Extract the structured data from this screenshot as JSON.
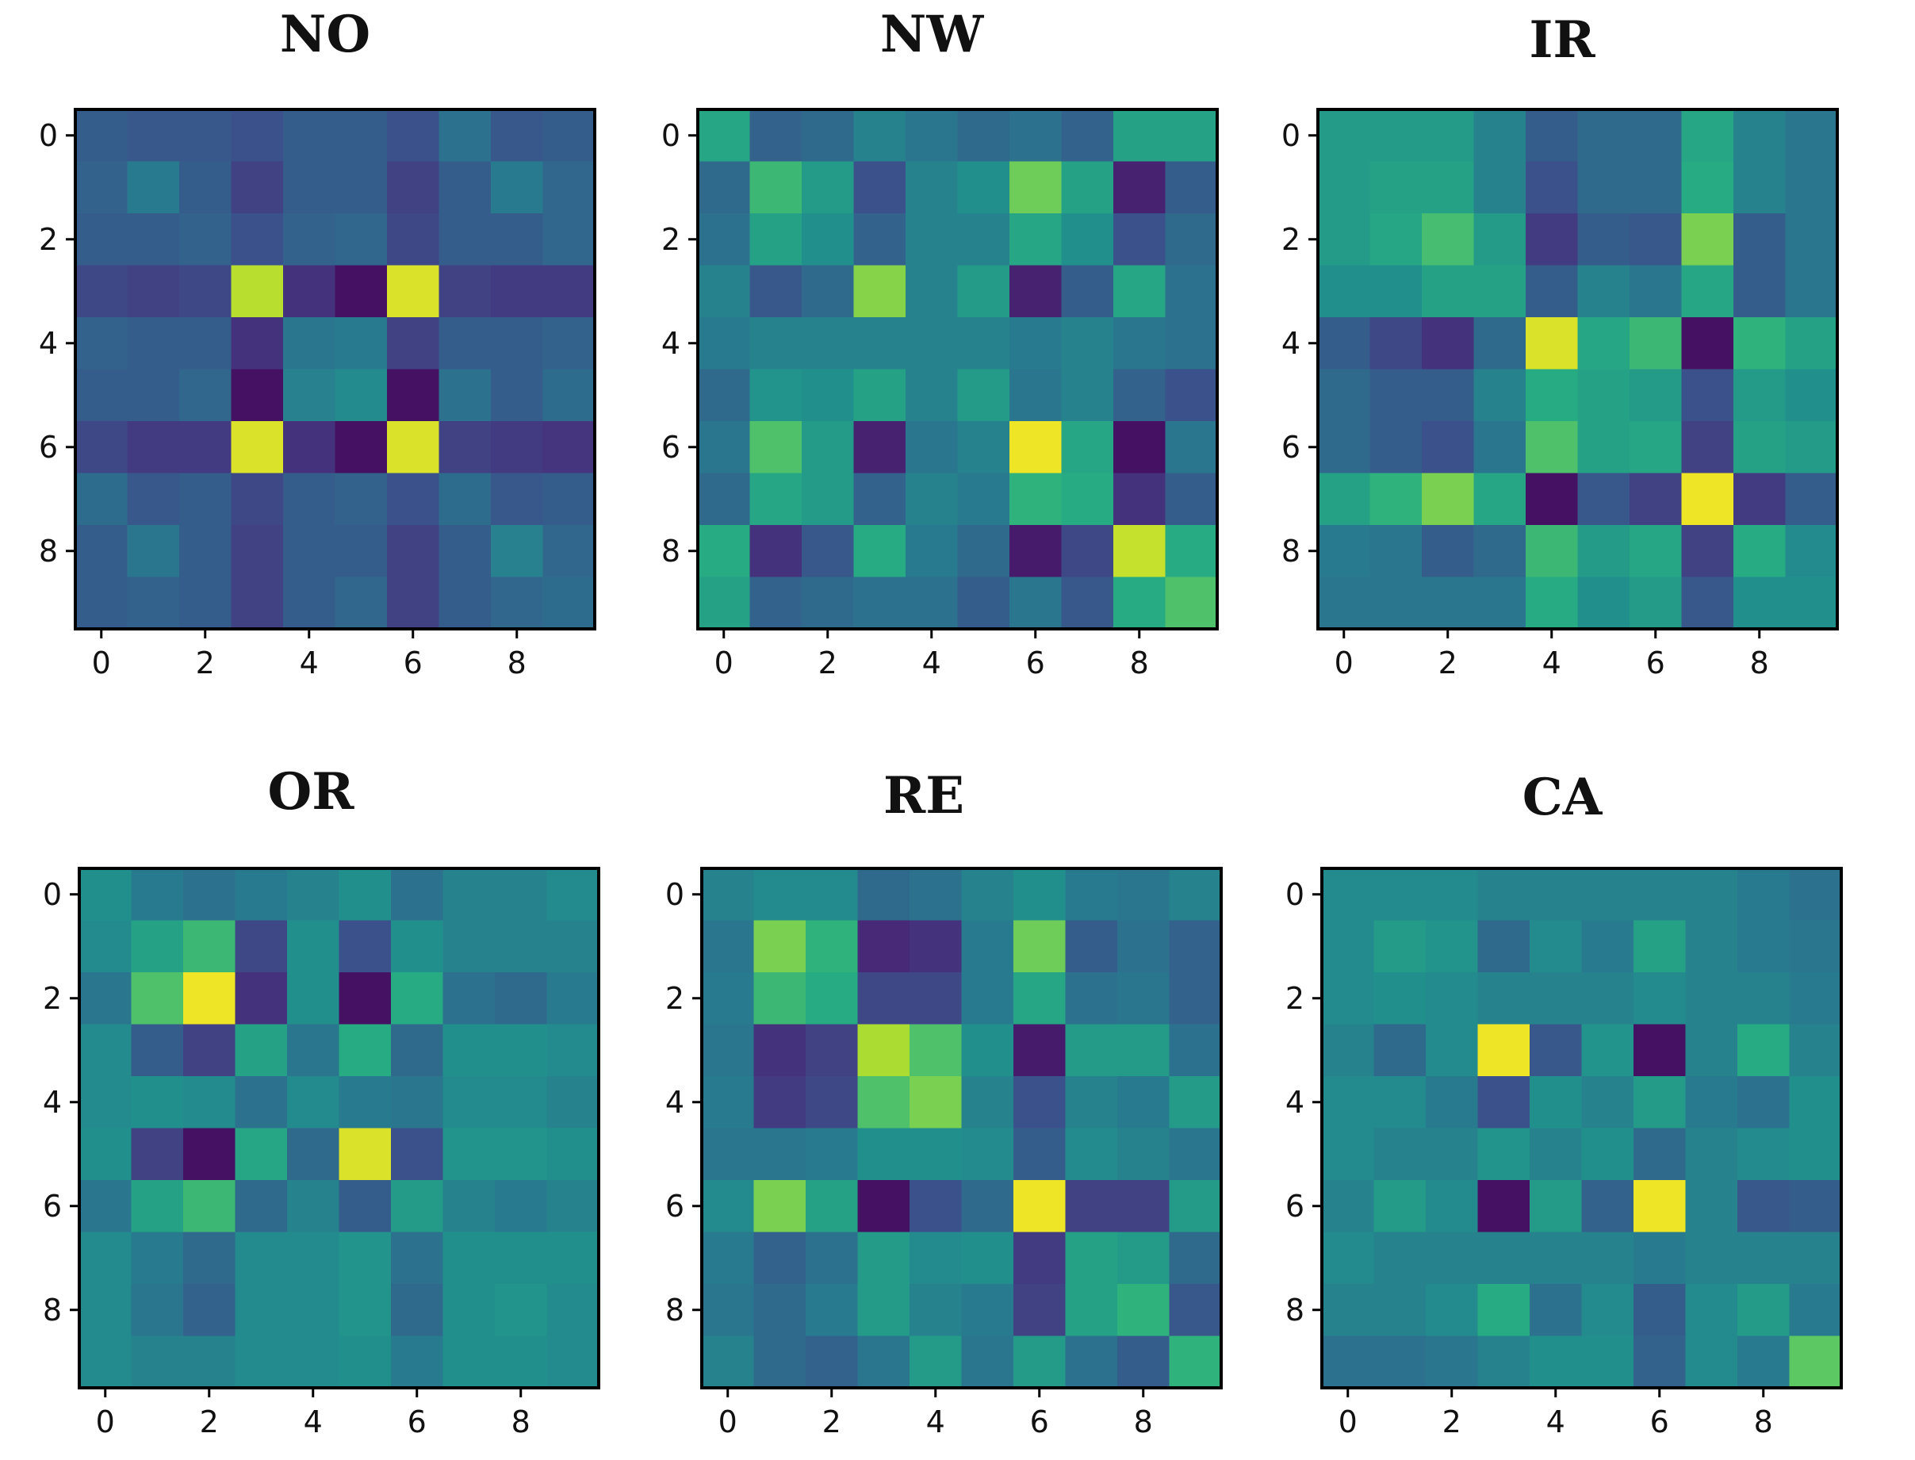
{
  "figure": {
    "layout": "2x3 grid of heatmaps",
    "colormap": "viridis"
  },
  "chart_data": [
    {
      "type": "heatmap",
      "title": "NO",
      "x_ticks": [
        "0",
        "2",
        "4",
        "6",
        "8"
      ],
      "y_ticks": [
        "0",
        "2",
        "4",
        "6",
        "8"
      ],
      "range": [
        0,
        1
      ],
      "values": [
        [
          0.3,
          0.28,
          0.28,
          0.25,
          0.3,
          0.3,
          0.25,
          0.38,
          0.28,
          0.3
        ],
        [
          0.32,
          0.42,
          0.3,
          0.2,
          0.3,
          0.3,
          0.2,
          0.3,
          0.42,
          0.34
        ],
        [
          0.3,
          0.3,
          0.32,
          0.25,
          0.32,
          0.34,
          0.22,
          0.3,
          0.3,
          0.34
        ],
        [
          0.22,
          0.2,
          0.22,
          0.9,
          0.15,
          0.05,
          0.95,
          0.2,
          0.18,
          0.18
        ],
        [
          0.32,
          0.3,
          0.3,
          0.15,
          0.4,
          0.42,
          0.2,
          0.3,
          0.3,
          0.32
        ],
        [
          0.3,
          0.3,
          0.34,
          0.05,
          0.44,
          0.48,
          0.05,
          0.38,
          0.3,
          0.36
        ],
        [
          0.22,
          0.18,
          0.18,
          0.95,
          0.15,
          0.05,
          0.95,
          0.2,
          0.18,
          0.16
        ],
        [
          0.36,
          0.28,
          0.3,
          0.22,
          0.3,
          0.32,
          0.25,
          0.36,
          0.28,
          0.3
        ],
        [
          0.3,
          0.4,
          0.3,
          0.2,
          0.3,
          0.3,
          0.2,
          0.3,
          0.44,
          0.34
        ],
        [
          0.3,
          0.32,
          0.3,
          0.2,
          0.3,
          0.34,
          0.2,
          0.3,
          0.34,
          0.36
        ]
      ]
    },
    {
      "type": "heatmap",
      "title": "NW",
      "x_ticks": [
        "0",
        "2",
        "4",
        "6",
        "8"
      ],
      "y_ticks": [
        "0",
        "2",
        "4",
        "6",
        "8"
      ],
      "range": [
        0,
        1
      ],
      "values": [
        [
          0.6,
          0.32,
          0.35,
          0.45,
          0.4,
          0.35,
          0.38,
          0.32,
          0.58,
          0.58
        ],
        [
          0.35,
          0.68,
          0.55,
          0.25,
          0.45,
          0.5,
          0.78,
          0.58,
          0.1,
          0.3
        ],
        [
          0.38,
          0.58,
          0.5,
          0.32,
          0.45,
          0.45,
          0.6,
          0.5,
          0.25,
          0.35
        ],
        [
          0.45,
          0.28,
          0.35,
          0.82,
          0.45,
          0.55,
          0.1,
          0.3,
          0.6,
          0.38
        ],
        [
          0.42,
          0.45,
          0.45,
          0.45,
          0.45,
          0.45,
          0.42,
          0.45,
          0.4,
          0.38
        ],
        [
          0.35,
          0.52,
          0.5,
          0.58,
          0.45,
          0.55,
          0.4,
          0.45,
          0.32,
          0.25
        ],
        [
          0.4,
          0.72,
          0.55,
          0.1,
          0.4,
          0.45,
          0.98,
          0.6,
          0.05,
          0.4
        ],
        [
          0.35,
          0.6,
          0.55,
          0.32,
          0.45,
          0.42,
          0.65,
          0.62,
          0.15,
          0.3
        ],
        [
          0.62,
          0.15,
          0.28,
          0.62,
          0.42,
          0.35,
          0.08,
          0.22,
          0.92,
          0.62
        ],
        [
          0.58,
          0.32,
          0.35,
          0.38,
          0.38,
          0.3,
          0.4,
          0.28,
          0.62,
          0.72
        ]
      ]
    },
    {
      "type": "heatmap",
      "title": "IR",
      "x_ticks": [
        "0",
        "2",
        "4",
        "6",
        "8"
      ],
      "y_ticks": [
        "0",
        "2",
        "4",
        "6",
        "8"
      ],
      "range": [
        0,
        1
      ],
      "values": [
        [
          0.55,
          0.55,
          0.55,
          0.45,
          0.3,
          0.35,
          0.35,
          0.6,
          0.45,
          0.4
        ],
        [
          0.55,
          0.58,
          0.58,
          0.45,
          0.25,
          0.35,
          0.35,
          0.62,
          0.45,
          0.4
        ],
        [
          0.55,
          0.6,
          0.7,
          0.55,
          0.18,
          0.3,
          0.28,
          0.8,
          0.3,
          0.4
        ],
        [
          0.5,
          0.5,
          0.58,
          0.58,
          0.3,
          0.45,
          0.4,
          0.6,
          0.3,
          0.4
        ],
        [
          0.3,
          0.22,
          0.15,
          0.35,
          0.95,
          0.6,
          0.68,
          0.05,
          0.65,
          0.58
        ],
        [
          0.35,
          0.3,
          0.3,
          0.45,
          0.62,
          0.58,
          0.55,
          0.25,
          0.55,
          0.5
        ],
        [
          0.35,
          0.3,
          0.25,
          0.4,
          0.72,
          0.58,
          0.6,
          0.2,
          0.58,
          0.55
        ],
        [
          0.58,
          0.65,
          0.8,
          0.6,
          0.05,
          0.28,
          0.2,
          0.98,
          0.18,
          0.3
        ],
        [
          0.42,
          0.4,
          0.3,
          0.35,
          0.68,
          0.55,
          0.6,
          0.2,
          0.62,
          0.48
        ],
        [
          0.4,
          0.4,
          0.4,
          0.4,
          0.62,
          0.5,
          0.55,
          0.28,
          0.5,
          0.5
        ]
      ]
    },
    {
      "type": "heatmap",
      "title": "OR",
      "x_ticks": [
        "0",
        "2",
        "4",
        "6",
        "8"
      ],
      "y_ticks": [
        "0",
        "2",
        "4",
        "6",
        "8"
      ],
      "range": [
        0,
        1
      ],
      "values": [
        [
          0.5,
          0.42,
          0.38,
          0.42,
          0.45,
          0.5,
          0.38,
          0.45,
          0.45,
          0.48
        ],
        [
          0.48,
          0.58,
          0.68,
          0.22,
          0.5,
          0.25,
          0.5,
          0.45,
          0.45,
          0.45
        ],
        [
          0.4,
          0.72,
          0.98,
          0.15,
          0.5,
          0.05,
          0.62,
          0.38,
          0.35,
          0.42
        ],
        [
          0.48,
          0.3,
          0.2,
          0.58,
          0.4,
          0.62,
          0.35,
          0.5,
          0.5,
          0.48
        ],
        [
          0.48,
          0.5,
          0.48,
          0.38,
          0.48,
          0.42,
          0.4,
          0.48,
          0.48,
          0.45
        ],
        [
          0.5,
          0.2,
          0.05,
          0.6,
          0.35,
          0.95,
          0.25,
          0.52,
          0.52,
          0.5
        ],
        [
          0.4,
          0.58,
          0.68,
          0.35,
          0.45,
          0.3,
          0.55,
          0.45,
          0.42,
          0.45
        ],
        [
          0.48,
          0.42,
          0.35,
          0.48,
          0.48,
          0.52,
          0.38,
          0.5,
          0.5,
          0.5
        ],
        [
          0.48,
          0.4,
          0.32,
          0.48,
          0.48,
          0.52,
          0.35,
          0.5,
          0.52,
          0.48
        ],
        [
          0.48,
          0.45,
          0.45,
          0.48,
          0.48,
          0.5,
          0.42,
          0.5,
          0.5,
          0.48
        ]
      ]
    },
    {
      "type": "heatmap",
      "title": "RE",
      "x_ticks": [
        "0",
        "2",
        "4",
        "6",
        "8"
      ],
      "y_ticks": [
        "0",
        "2",
        "4",
        "6",
        "8"
      ],
      "range": [
        0,
        1
      ],
      "values": [
        [
          0.45,
          0.48,
          0.48,
          0.35,
          0.38,
          0.45,
          0.5,
          0.42,
          0.4,
          0.45
        ],
        [
          0.4,
          0.8,
          0.65,
          0.12,
          0.15,
          0.42,
          0.78,
          0.3,
          0.38,
          0.32
        ],
        [
          0.42,
          0.68,
          0.62,
          0.22,
          0.22,
          0.42,
          0.6,
          0.38,
          0.4,
          0.32
        ],
        [
          0.4,
          0.15,
          0.2,
          0.88,
          0.72,
          0.5,
          0.08,
          0.55,
          0.55,
          0.38
        ],
        [
          0.42,
          0.18,
          0.22,
          0.72,
          0.8,
          0.45,
          0.25,
          0.45,
          0.42,
          0.55
        ],
        [
          0.4,
          0.4,
          0.42,
          0.5,
          0.5,
          0.48,
          0.3,
          0.48,
          0.45,
          0.4
        ],
        [
          0.48,
          0.8,
          0.58,
          0.05,
          0.25,
          0.35,
          0.98,
          0.2,
          0.2,
          0.55
        ],
        [
          0.42,
          0.32,
          0.38,
          0.55,
          0.48,
          0.5,
          0.18,
          0.58,
          0.55,
          0.35
        ],
        [
          0.4,
          0.35,
          0.42,
          0.55,
          0.45,
          0.42,
          0.2,
          0.58,
          0.65,
          0.28
        ],
        [
          0.45,
          0.35,
          0.32,
          0.4,
          0.55,
          0.4,
          0.55,
          0.38,
          0.3,
          0.65
        ]
      ]
    },
    {
      "type": "heatmap",
      "title": "CA",
      "x_ticks": [
        "0",
        "2",
        "4",
        "6",
        "8"
      ],
      "y_ticks": [
        "0",
        "2",
        "4",
        "6",
        "8"
      ],
      "range": [
        0,
        1
      ],
      "values": [
        [
          0.48,
          0.48,
          0.48,
          0.45,
          0.45,
          0.45,
          0.45,
          0.45,
          0.42,
          0.38
        ],
        [
          0.48,
          0.55,
          0.52,
          0.35,
          0.48,
          0.42,
          0.58,
          0.45,
          0.42,
          0.4
        ],
        [
          0.48,
          0.5,
          0.48,
          0.45,
          0.45,
          0.45,
          0.48,
          0.45,
          0.45,
          0.42
        ],
        [
          0.45,
          0.35,
          0.48,
          0.98,
          0.28,
          0.52,
          0.05,
          0.45,
          0.62,
          0.45
        ],
        [
          0.48,
          0.48,
          0.42,
          0.25,
          0.5,
          0.45,
          0.55,
          0.42,
          0.38,
          0.5
        ],
        [
          0.48,
          0.45,
          0.45,
          0.52,
          0.45,
          0.5,
          0.35,
          0.45,
          0.48,
          0.5
        ],
        [
          0.45,
          0.55,
          0.48,
          0.05,
          0.55,
          0.32,
          0.98,
          0.45,
          0.28,
          0.3
        ],
        [
          0.48,
          0.45,
          0.45,
          0.45,
          0.45,
          0.45,
          0.42,
          0.45,
          0.45,
          0.45
        ],
        [
          0.45,
          0.45,
          0.48,
          0.62,
          0.38,
          0.48,
          0.3,
          0.48,
          0.55,
          0.42
        ],
        [
          0.38,
          0.38,
          0.4,
          0.45,
          0.5,
          0.5,
          0.32,
          0.48,
          0.42,
          0.75
        ]
      ]
    }
  ]
}
